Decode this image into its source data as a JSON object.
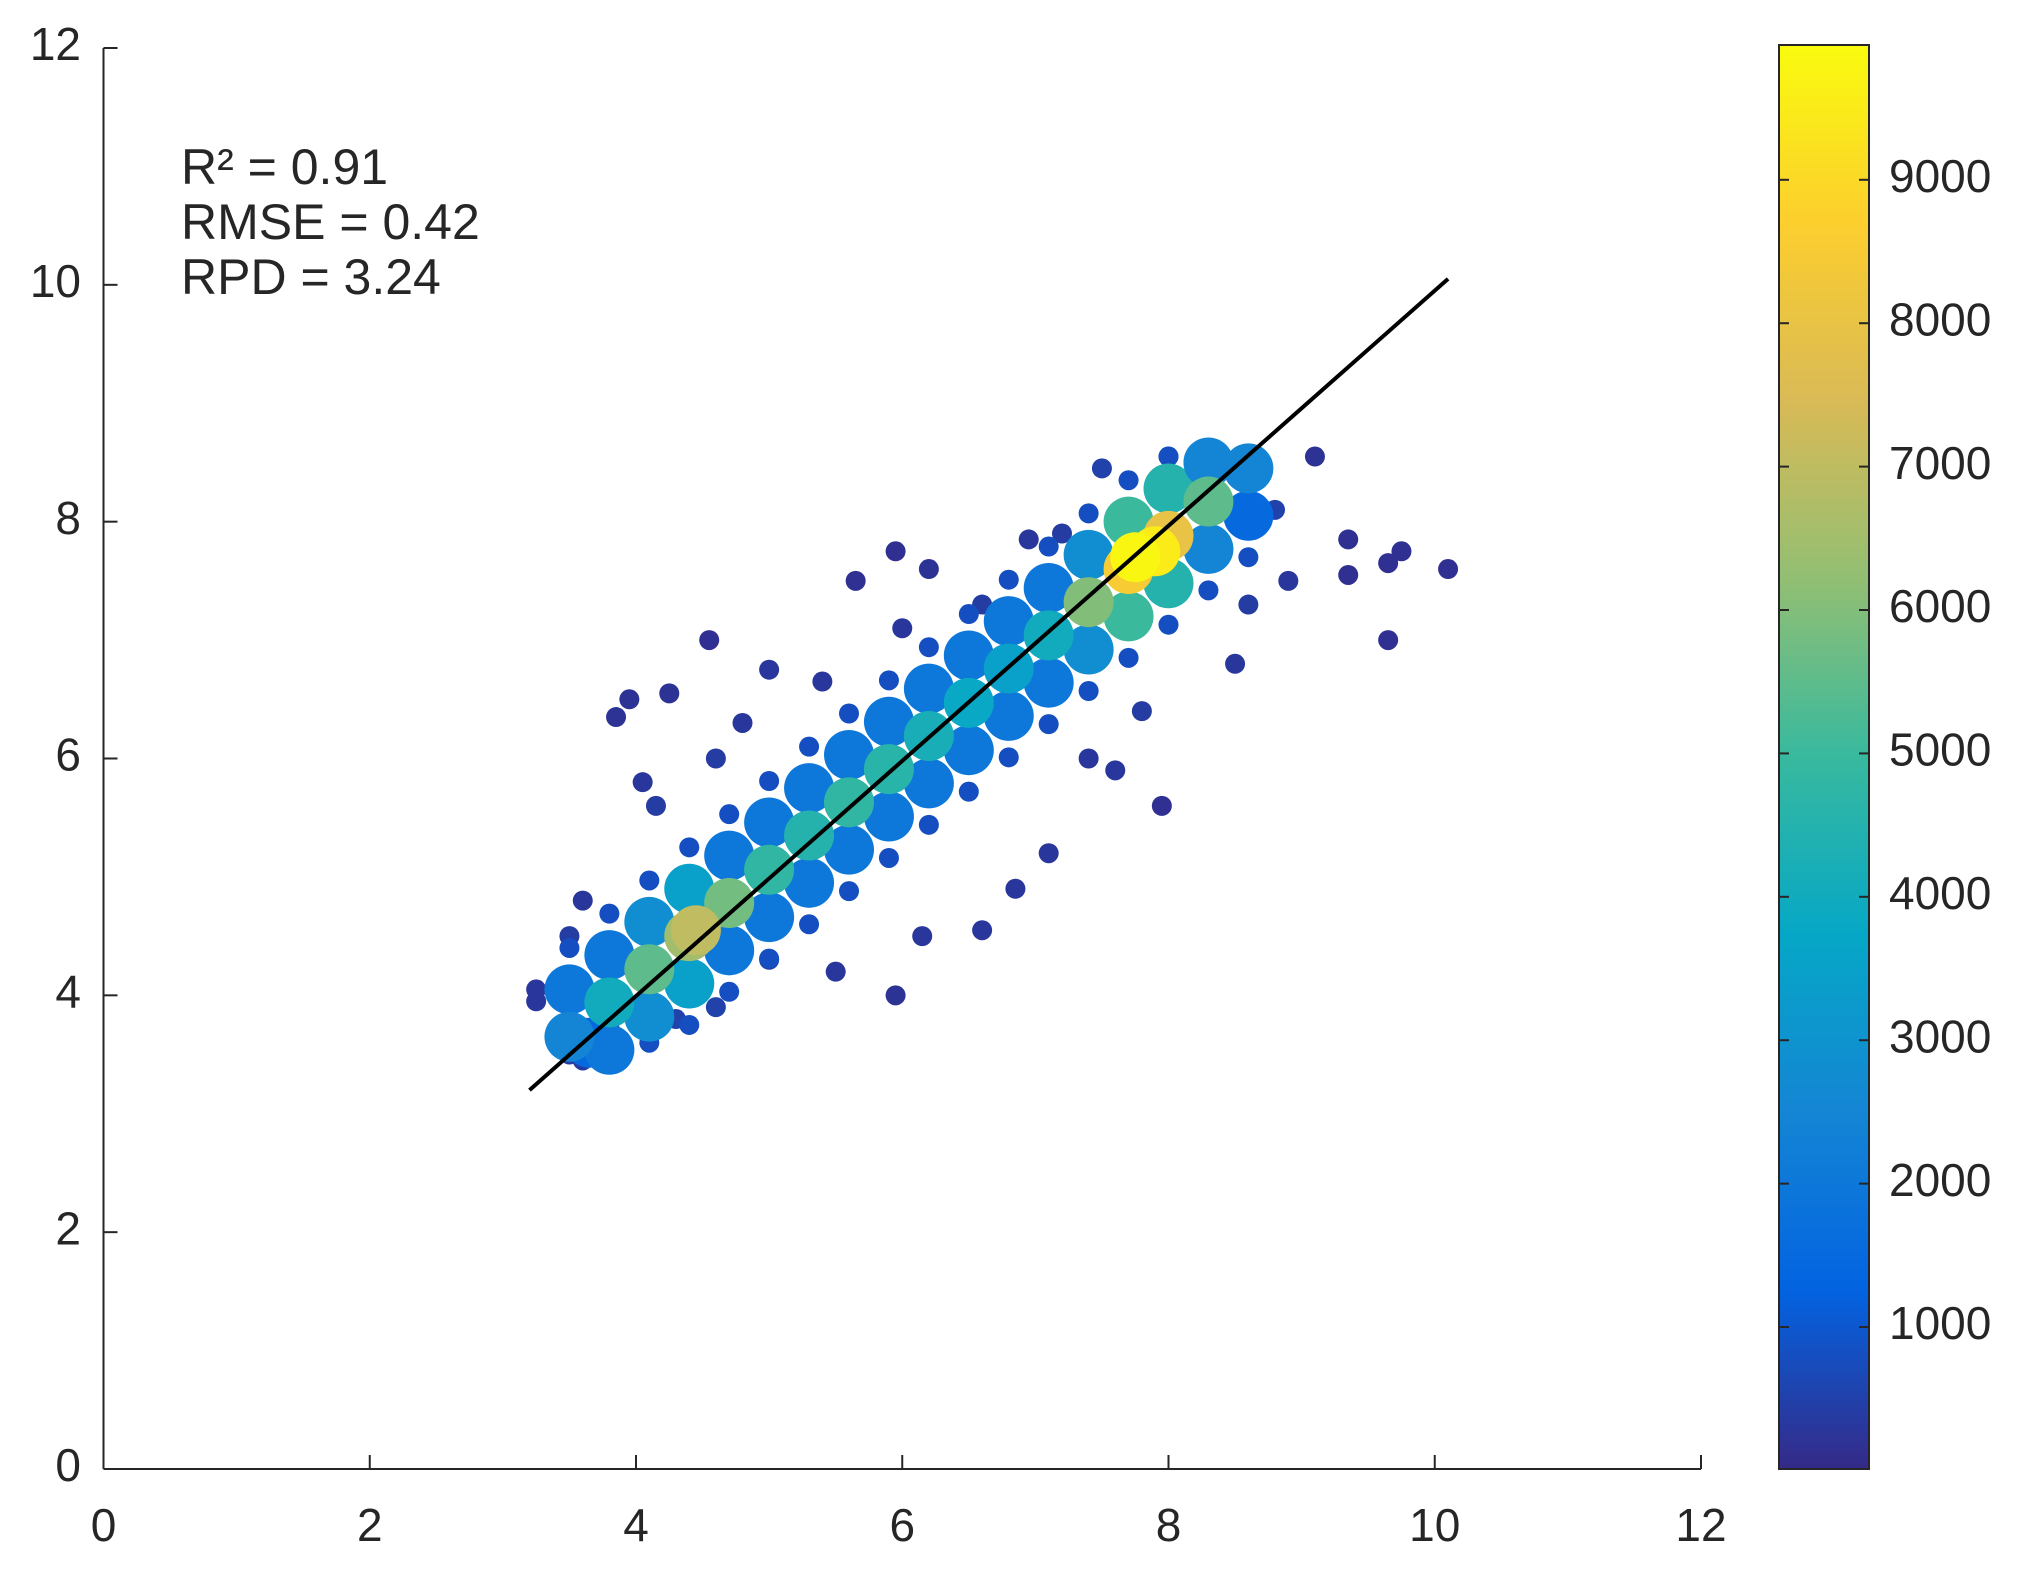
{
  "chart_data": {
    "type": "scatter",
    "xlim": [
      0,
      12
    ],
    "xticks": [
      0,
      2,
      4,
      6,
      8,
      10,
      12
    ],
    "ylim": [
      0,
      12
    ],
    "yticks": [
      0,
      2,
      4,
      6,
      8,
      10,
      12
    ],
    "annotations": [
      "R² = 0.91",
      "RMSE = 0.42",
      "RPD = 3.24"
    ],
    "fit_line": {
      "x": [
        3.2,
        10.1
      ],
      "y": [
        3.2,
        10.05
      ],
      "color": "#000000"
    },
    "colorbar": {
      "clim": [
        10,
        9940
      ],
      "ticks": [
        1000,
        2000,
        3000,
        4000,
        5000,
        6000,
        7000,
        8000,
        9000
      ]
    },
    "colormap": [
      "#352a87",
      "#0363e1",
      "#1485d4",
      "#06a7c6",
      "#38b99e",
      "#92bf73",
      "#d9ba56",
      "#fcce2e",
      "#f9fb0e"
    ],
    "points": [
      [
        3.25,
        4.05,
        300
      ],
      [
        3.25,
        3.95,
        300
      ],
      [
        3.5,
        3.5,
        400
      ],
      [
        3.6,
        3.45,
        400
      ],
      [
        3.85,
        6.35,
        200
      ],
      [
        3.95,
        6.5,
        200
      ],
      [
        4.25,
        6.55,
        200
      ],
      [
        4.55,
        7.0,
        150
      ],
      [
        4.15,
        5.6,
        400
      ],
      [
        4.05,
        5.8,
        300
      ],
      [
        5.4,
        6.65,
        300
      ],
      [
        5.65,
        7.5,
        150
      ],
      [
        5.95,
        7.75,
        150
      ],
      [
        6.2,
        7.6,
        200
      ],
      [
        6.95,
        7.85,
        300
      ],
      [
        7.5,
        8.45,
        500
      ],
      [
        8.0,
        8.55,
        500
      ],
      [
        8.35,
        8.6,
        500
      ],
      [
        9.1,
        8.55,
        200
      ],
      [
        9.35,
        7.85,
        150
      ],
      [
        9.35,
        7.55,
        150
      ],
      [
        9.65,
        7.65,
        150
      ],
      [
        9.75,
        7.75,
        150
      ],
      [
        10.1,
        7.6,
        150
      ],
      [
        9.65,
        7.0,
        150
      ],
      [
        7.95,
        5.6,
        150
      ],
      [
        7.1,
        5.2,
        300
      ],
      [
        6.6,
        4.55,
        300
      ],
      [
        5.95,
        4.0,
        200
      ],
      [
        6.15,
        4.5,
        300
      ],
      [
        6.85,
        4.9,
        300
      ],
      [
        5.0,
        4.3,
        400
      ],
      [
        4.3,
        3.8,
        500
      ],
      [
        3.8,
        3.75,
        500
      ],
      [
        8.5,
        6.8,
        300
      ],
      [
        8.9,
        7.5,
        300
      ],
      [
        8.8,
        8.1,
        500
      ],
      [
        7.4,
        6.0,
        300
      ],
      [
        7.6,
        5.9,
        300
      ],
      [
        4.8,
        6.3,
        300
      ],
      [
        5.0,
        6.75,
        300
      ],
      [
        6.6,
        7.3,
        400
      ],
      [
        7.2,
        7.9,
        400
      ],
      [
        3.5,
        4.5,
        400
      ],
      [
        3.6,
        4.8,
        300
      ],
      [
        4.6,
        3.9,
        500
      ],
      [
        5.5,
        4.2,
        300
      ],
      [
        7.8,
        6.4,
        400
      ],
      [
        8.6,
        7.3,
        400
      ],
      [
        6.0,
        7.1,
        300
      ],
      [
        4.6,
        6.0,
        400
      ],
      [
        3.5,
        4.4,
        800
      ],
      [
        3.8,
        4.69,
        800
      ],
      [
        4.1,
        4.97,
        800
      ],
      [
        4.4,
        5.25,
        800
      ],
      [
        4.7,
        5.53,
        800
      ],
      [
        5.0,
        5.81,
        800
      ],
      [
        5.3,
        6.1,
        800
      ],
      [
        5.6,
        6.38,
        800
      ],
      [
        5.9,
        6.66,
        800
      ],
      [
        6.2,
        6.94,
        800
      ],
      [
        6.5,
        7.22,
        800
      ],
      [
        6.8,
        7.51,
        800
      ],
      [
        7.1,
        7.79,
        800
      ],
      [
        7.4,
        8.07,
        800
      ],
      [
        7.7,
        8.35,
        800
      ],
      [
        8.0,
        8.55,
        800
      ],
      [
        4.1,
        3.6,
        800
      ],
      [
        4.4,
        3.75,
        800
      ],
      [
        4.7,
        4.03,
        800
      ],
      [
        5.0,
        4.31,
        800
      ],
      [
        5.3,
        4.6,
        800
      ],
      [
        5.6,
        4.88,
        800
      ],
      [
        5.9,
        5.16,
        800
      ],
      [
        6.2,
        5.44,
        800
      ],
      [
        6.5,
        5.72,
        800
      ],
      [
        6.8,
        6.01,
        800
      ],
      [
        7.1,
        6.29,
        800
      ],
      [
        7.4,
        6.57,
        800
      ],
      [
        7.7,
        6.85,
        800
      ],
      [
        8.0,
        7.13,
        800
      ],
      [
        8.3,
        7.42,
        800
      ],
      [
        8.6,
        7.7,
        800
      ],
      [
        3.5,
        4.05,
        2000
      ],
      [
        3.8,
        4.34,
        2000
      ],
      [
        4.1,
        4.62,
        2800
      ],
      [
        4.4,
        4.9,
        3500
      ],
      [
        4.7,
        5.18,
        2000
      ],
      [
        5.0,
        5.46,
        2000
      ],
      [
        5.3,
        5.75,
        2000
      ],
      [
        5.6,
        6.03,
        2000
      ],
      [
        5.9,
        6.31,
        2000
      ],
      [
        6.2,
        6.59,
        2000
      ],
      [
        6.5,
        6.87,
        2000
      ],
      [
        6.8,
        7.16,
        2000
      ],
      [
        7.1,
        7.44,
        2000
      ],
      [
        7.4,
        7.72,
        2800
      ],
      [
        7.7,
        8.0,
        5000
      ],
      [
        8.0,
        8.28,
        4500
      ],
      [
        8.3,
        8.5,
        2500
      ],
      [
        3.65,
        3.6,
        1500
      ],
      [
        3.8,
        3.54,
        2000
      ],
      [
        4.1,
        3.82,
        2800
      ],
      [
        4.4,
        4.1,
        3500
      ],
      [
        4.7,
        4.38,
        2000
      ],
      [
        5.0,
        4.66,
        2000
      ],
      [
        5.3,
        4.95,
        2000
      ],
      [
        5.6,
        5.23,
        2000
      ],
      [
        5.9,
        5.51,
        2000
      ],
      [
        6.2,
        5.79,
        2000
      ],
      [
        6.5,
        6.07,
        2000
      ],
      [
        6.8,
        6.36,
        2000
      ],
      [
        7.1,
        6.64,
        2000
      ],
      [
        7.4,
        6.92,
        2800
      ],
      [
        7.7,
        7.2,
        5000
      ],
      [
        8.0,
        7.48,
        4500
      ],
      [
        8.3,
        7.77,
        2500
      ],
      [
        8.6,
        8.05,
        1500
      ],
      [
        3.5,
        3.65,
        2500
      ],
      [
        3.8,
        3.94,
        4000
      ],
      [
        4.1,
        4.22,
        5500
      ],
      [
        4.4,
        4.5,
        6500
      ],
      [
        4.7,
        4.78,
        5800
      ],
      [
        5.0,
        5.06,
        4800
      ],
      [
        5.3,
        5.35,
        4500
      ],
      [
        5.6,
        5.63,
        4800
      ],
      [
        5.9,
        5.91,
        4600
      ],
      [
        6.2,
        6.19,
        4200
      ],
      [
        6.5,
        6.47,
        3800
      ],
      [
        6.8,
        6.76,
        3500
      ],
      [
        7.1,
        7.04,
        4000
      ],
      [
        7.4,
        7.32,
        6000
      ],
      [
        7.7,
        7.6,
        8500
      ],
      [
        8.0,
        7.88,
        8000
      ],
      [
        8.3,
        8.17,
        5500
      ],
      [
        8.6,
        8.45,
        2500
      ],
      [
        4.45,
        4.55,
        7000
      ],
      [
        7.9,
        7.75,
        9500
      ],
      [
        7.75,
        7.7,
        9800
      ]
    ]
  }
}
